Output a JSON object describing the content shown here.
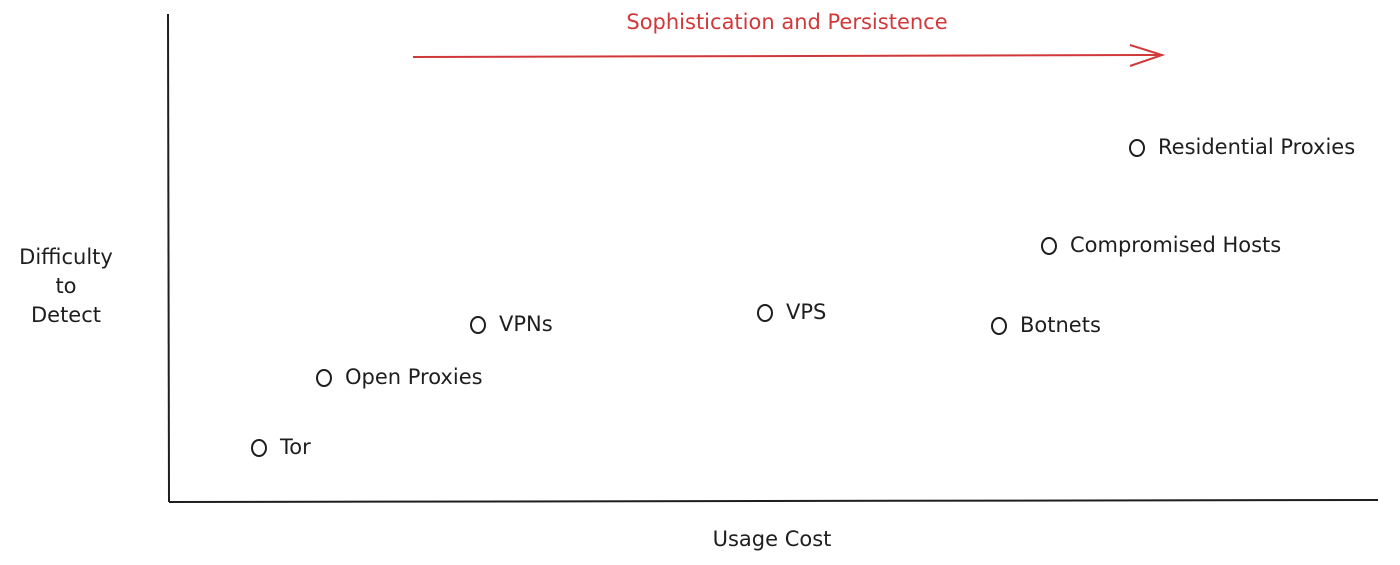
{
  "title": "Sophistication and Persistence",
  "y_axis_label": [
    "Difficulty",
    "to",
    "Detect"
  ],
  "x_axis_label": "Usage Cost",
  "nodes": [
    {
      "label": "Tor"
    },
    {
      "label": "Open Proxies"
    },
    {
      "label": "VPNs"
    },
    {
      "label": "VPS"
    },
    {
      "label": "Botnets"
    },
    {
      "label": "Compromised Hosts"
    },
    {
      "label": "Residential Proxies"
    }
  ]
}
